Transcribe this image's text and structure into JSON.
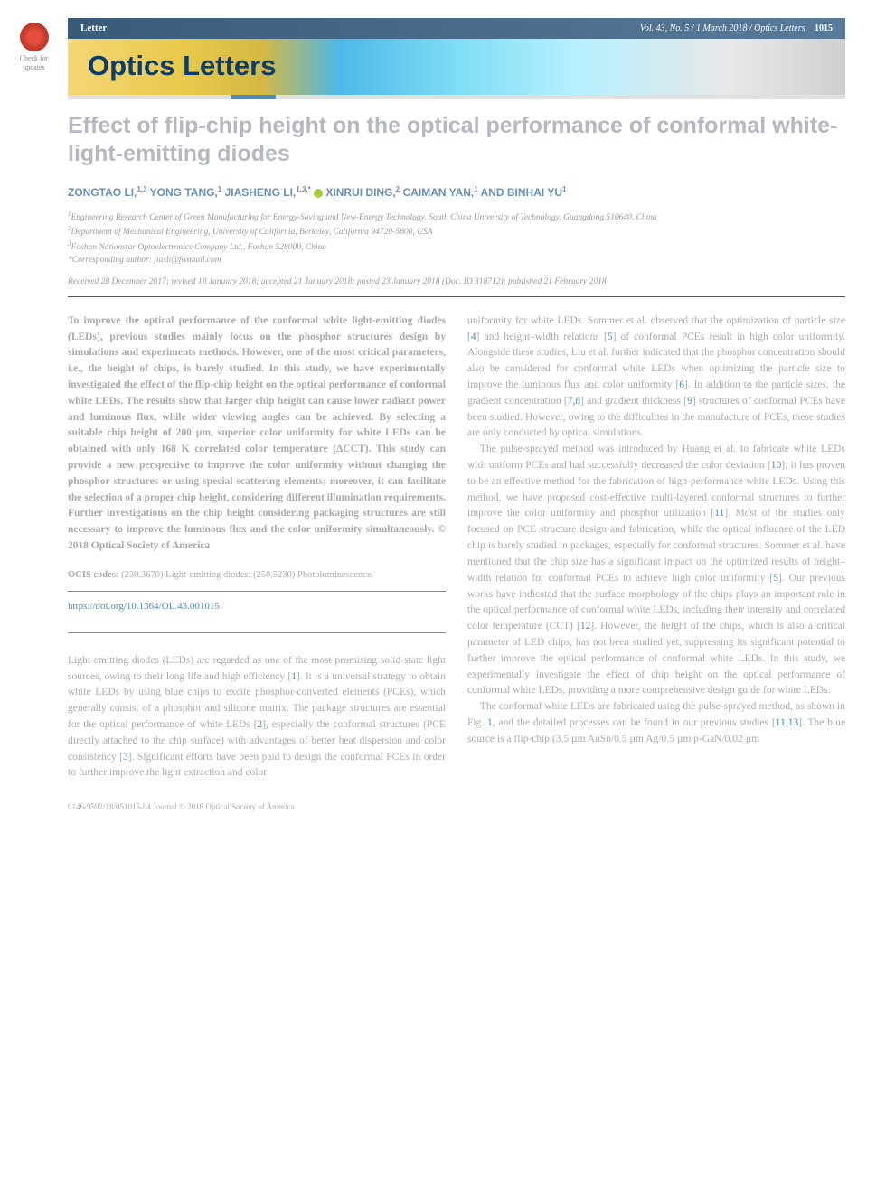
{
  "check_updates": {
    "label": "Check for\nupdates"
  },
  "header": {
    "letter_tag": "Letter",
    "vol_info": "Vol. 43, No. 5 / 1 March 2018 / Optics Letters",
    "page_no": "1015",
    "journal_name": "Optics Letters"
  },
  "article": {
    "title": "Effect of flip-chip height on the optical performance of conformal white-light-emitting diodes",
    "authors_html": "ZONGTAO LI,<sup>1,3</sup> YONG TANG,<sup>1</sup> JIASHENG LI,<sup>1,3,*</sup> <span class='orcid'></span> XINRUI DING,<sup>2</sup> CAIMAN YAN,<sup>1</sup> AND BINHAI YU<sup>1</sup>",
    "affiliations": [
      "<sup>1</sup>Engineering Research Center of Green Manufacturing for Energy-Saving and New-Energy Technology, South China University of Technology, Guangdong 510640, China",
      "<sup>2</sup>Department of Mechanical Engineering, University of California, Berkeley, California 94720-5800, USA",
      "<sup>3</sup>Foshan Nationstar Optoelectronics Company Ltd., Foshan 528000, China",
      "*Corresponding author: jiasli@foxmail.com"
    ],
    "dates": "Received 28 December 2017; revised 18 January 2018; accepted 21 January 2018; posted 23 January 2018 (Doc. ID 318712); published 21 February 2018"
  },
  "abstract": "To improve the optical performance of the conformal white light-emitting diodes (LEDs), previous studies mainly focus on the phosphor structures design by simulations and experiments methods. However, one of the most critical parameters, i.e., the height of chips, is barely studied. In this study, we have experimentally investigated the effect of the flip-chip height on the optical performance of conformal white LEDs. The results show that larger chip height can cause lower radiant power and luminous flux, while wider viewing angles can be achieved. By selecting a suitable chip height of 200 µm, superior color uniformity for white LEDs can be obtained with only 168 K correlated color temperature (ΔCCT). This study can provide a new perspective to improve the color uniformity without changing the phosphor structures or using special scattering elements; moreover, it can facilitate the selection of a proper chip height, considering different illumination requirements. Further investigations on the chip height considering packaging structures are still necessary to improve the luminous flux and the color uniformity simultaneously. © 2018 Optical Society of America",
  "ocis_label": "OCIS codes:",
  "ocis_codes": "(230.3670) Light-emitting diodes; (250.5230) Photoluminescence.",
  "doi": "https://doi.org/10.1364/OL.43.001015",
  "col1_body": "Light-emitting diodes (LEDs) are regarded as one of the most promising solid-state light sources, owing to their long life and high efficiency [1]. It is a universal strategy to obtain white LEDs by using blue chips to excite phosphor-converted elements (PCEs), which generally consist of a phosphor and silicone matrix. The package structures are essential for the optical performance of white LEDs [2], especially the conformal structures (PCE directly attached to the chip surface) with advantages of better heat dispersion and color consistency [3]. Significant efforts have been paid to design the conformal PCEs in order to further improve the light extraction and color",
  "col2_body": [
    "uniformity for white LEDs. Sommer et al. observed that the optimization of particle size [4] and height–width relations [5] of conformal PCEs result in high color uniformity. Alongside these studies, Liu et al. further indicated that the phosphor concentration should also be considered for conformal white LEDs when optimizing the particle size to improve the luminous flux and color uniformity [6]. In addition to the particle sizes, the gradient concentration [7,8] and gradient thickness [9] structures of conformal PCEs have been studied. However, owing to the difficulties in the manufacture of PCEs, these studies are only conducted by optical simulations.",
    "The pulse-sprayed method was introduced by Huang et al. to fabricate white LEDs with uniform PCEs and had successfully decreased the color deviation [10]; it has proven to be an effective method for the fabrication of high-performance white LEDs. Using this method, we have proposed cost-effective multi-layered conformal structures to further improve the color uniformity and phosphor utilization [11]. Most of the studies only focused on PCE structure design and fabrication, while the optical influence of the LED chip is barely studied in packages, especially for conformal structures. Sommer et al. have mentioned that the chip size has a significant impact on the optimized results of height–width relation for conformal PCEs to achieve high color uniformity [5]. Our previous works have indicated that the surface morphology of the chips plays an important role in the optical performance of conformal white LEDs, including their intensity and correlated color temperature (CCT) [12]. However, the height of the chips, which is also a critical parameter of LED chips, has not been studied yet, suppressing its significant potential to further improve the optical performance of conformal white LEDs. In this study, we experimentally investigate the effect of chip height on the optical performance of conformal white LEDs, providing a more comprehensive design guide for white LEDs.",
    "The conformal white LEDs are fabricated using the pulse-sprayed method, as shown in Fig. 1, and the detailed processes can be found in our previous studies [11,13]. The blue source is a flip-chip (3.5 µm AuSn/0.5 µm Ag/0.5 µm p-GaN/0.02 µm"
  ],
  "footer": "0146-9592/18/051015-04 Journal © 2018 Optical Society of America",
  "refs": [
    "1",
    "2",
    "3",
    "4",
    "5",
    "6",
    "7",
    "8",
    "9",
    "10",
    "11",
    "12",
    "13"
  ]
}
